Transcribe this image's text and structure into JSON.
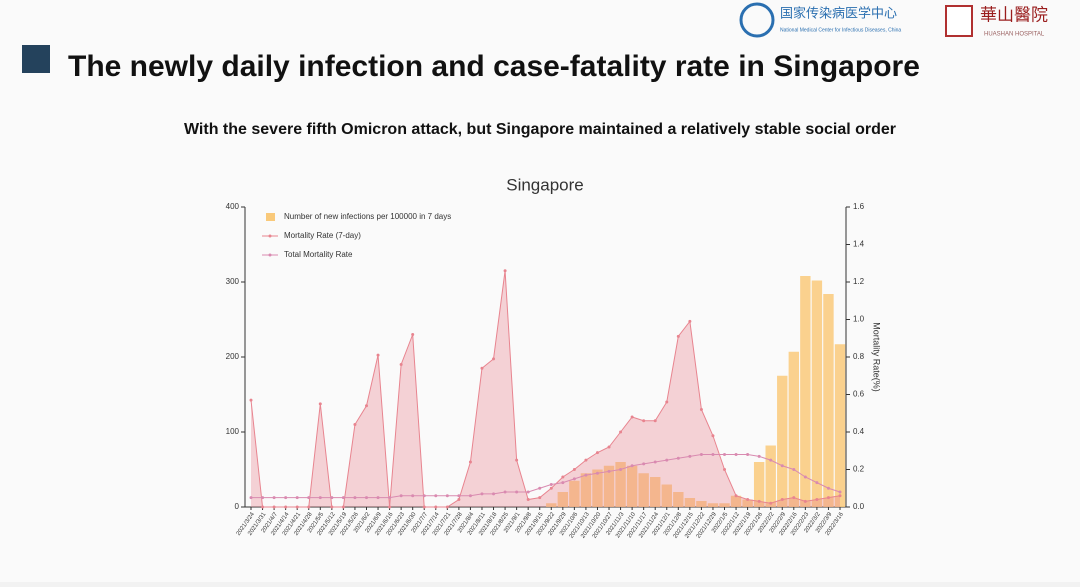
{
  "header": {
    "center_name": "国家传染病医学中心",
    "center_name_en": "National Medical Center for Infectious Diseases, China",
    "hospital_name": "華山醫院",
    "hospital_name_en": "HUASHAN HOSPITAL"
  },
  "slide": {
    "title": "The newly daily infection and case-fatality rate in Singapore",
    "subtitle": "With the severe fifth Omicron attack, but  Singapore maintained a relatively stable social order"
  },
  "chart_data": {
    "type": "combo",
    "title": "Singapore",
    "y2_label": "Mortality Rate(%)",
    "legend": "upper left",
    "categories": [
      "2021/3/24",
      "2021/3/31",
      "2021/4/7",
      "2021/4/14",
      "2021/4/21",
      "2021/4/28",
      "2021/5/5",
      "2021/5/12",
      "2021/5/19",
      "2021/5/26",
      "2021/6/2",
      "2021/6/9",
      "2021/6/16",
      "2021/6/23",
      "2021/6/30",
      "2021/7/7",
      "2021/7/14",
      "2021/7/21",
      "2021/7/28",
      "2021/8/4",
      "2021/8/11",
      "2021/8/18",
      "2021/8/25",
      "2021/9/1",
      "2021/9/8",
      "2021/9/15",
      "2021/9/22",
      "2021/9/29",
      "2021/10/6",
      "2021/10/13",
      "2021/10/20",
      "2021/10/27",
      "2021/11/3",
      "2021/11/10",
      "2021/11/17",
      "2021/11/24",
      "2021/12/1",
      "2021/12/8",
      "2021/12/15",
      "2021/12/22",
      "2021/12/29",
      "2022/1/5",
      "2022/1/12",
      "2022/1/19",
      "2022/1/26",
      "2022/2/2",
      "2022/2/9",
      "2022/2/16",
      "2022/2/23",
      "2022/3/2",
      "2022/3/9",
      "2022/3/16"
    ],
    "series": [
      {
        "name": "Number of new infections per 100000 in 7 days",
        "type": "bar",
        "axis": "y",
        "color": "#f9c97a",
        "values": [
          0,
          0,
          0,
          0,
          0,
          0,
          0,
          0,
          0,
          0,
          0,
          0,
          0,
          0,
          0,
          0,
          0,
          0,
          0,
          0,
          0,
          0,
          0,
          0,
          0,
          0,
          5,
          20,
          35,
          45,
          50,
          55,
          60,
          55,
          45,
          40,
          30,
          20,
          12,
          8,
          5,
          5,
          15,
          10,
          60,
          82,
          175,
          207,
          308,
          302,
          284,
          217
        ]
      },
      {
        "name": "Mortality Rate (7-day)",
        "type": "area",
        "axis": "y2",
        "color": "#e8848f",
        "values": [
          0.57,
          0,
          0,
          0,
          0,
          0,
          0.55,
          0,
          0,
          0.44,
          0.54,
          0.81,
          0,
          0.76,
          0.92,
          0,
          0,
          0,
          0.04,
          0.24,
          0.74,
          0.79,
          1.26,
          0.25,
          0.04,
          0.05,
          0.1,
          0.16,
          0.2,
          0.25,
          0.29,
          0.32,
          0.4,
          0.48,
          0.46,
          0.46,
          0.56,
          0.91,
          0.99,
          0.52,
          0.38,
          0.2,
          0.06,
          0.04,
          0.03,
          0.02,
          0.04,
          0.05,
          0.03,
          0.04,
          0.05,
          0.06
        ]
      },
      {
        "name": "Total Mortality Rate",
        "type": "line",
        "axis": "y2",
        "color": "#d98ab0",
        "values": [
          0.05,
          0.05,
          0.05,
          0.05,
          0.05,
          0.05,
          0.05,
          0.05,
          0.05,
          0.05,
          0.05,
          0.05,
          0.05,
          0.06,
          0.06,
          0.06,
          0.06,
          0.06,
          0.06,
          0.06,
          0.07,
          0.07,
          0.08,
          0.08,
          0.08,
          0.1,
          0.12,
          0.13,
          0.15,
          0.17,
          0.18,
          0.19,
          0.2,
          0.22,
          0.23,
          0.24,
          0.25,
          0.26,
          0.27,
          0.28,
          0.28,
          0.28,
          0.28,
          0.28,
          0.27,
          0.25,
          0.22,
          0.2,
          0.16,
          0.13,
          0.1,
          0.08
        ]
      }
    ],
    "ylim": [
      0,
      400
    ],
    "yticks": [
      0,
      100,
      200,
      300,
      400
    ],
    "y2lim": [
      0,
      1.6
    ],
    "y2ticks": [
      {
        "value": 0,
        "label": "0.0"
      },
      0.2,
      0.4,
      0.6,
      0.8,
      {
        "value": 1,
        "label": "1.0"
      },
      1.2,
      1.4,
      1.6
    ]
  }
}
